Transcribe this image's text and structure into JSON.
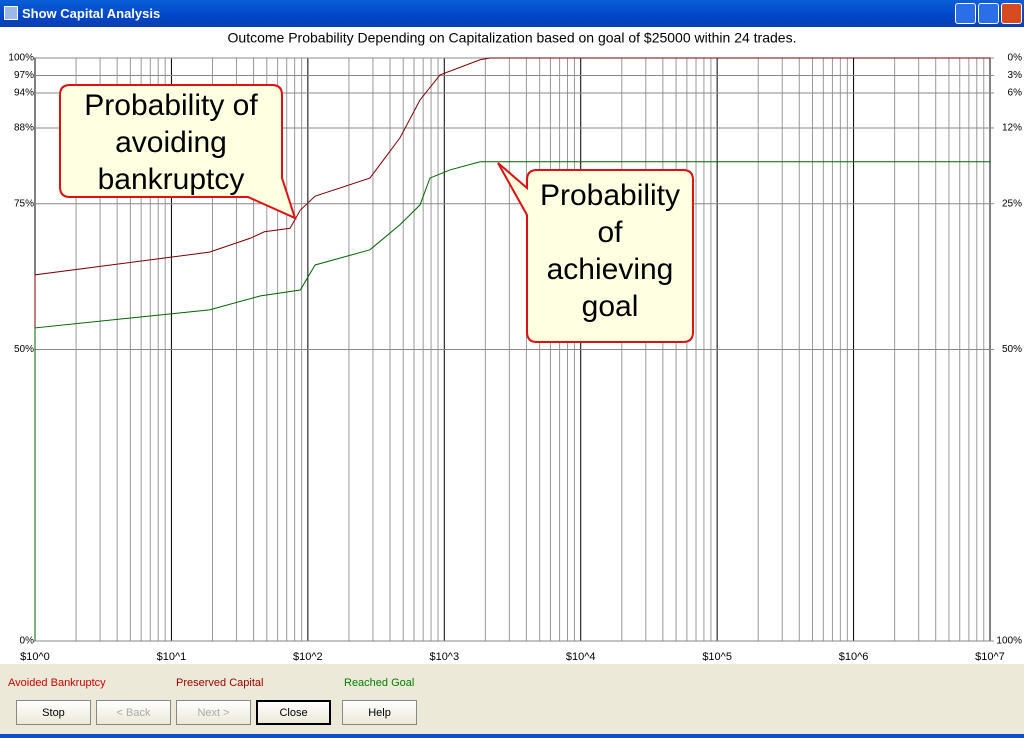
{
  "window": {
    "title": "Show Capital Analysis"
  },
  "chart_data": {
    "type": "line",
    "title": "Outcome Probability Depending on Capitalization based on goal of $25000 within 24 trades.",
    "xscale": "log",
    "xlim": [
      1,
      10000000
    ],
    "xticks": [
      {
        "value": 1,
        "label": "$10^0"
      },
      {
        "value": 10,
        "label": "$10^1"
      },
      {
        "value": 100,
        "label": "$10^2"
      },
      {
        "value": 1000,
        "label": "$10^3"
      },
      {
        "value": 10000,
        "label": "$10^4"
      },
      {
        "value": 100000,
        "label": "$10^5"
      },
      {
        "value": 1000000,
        "label": "$10^6"
      },
      {
        "value": 10000000,
        "label": "$10^7"
      }
    ],
    "ylim": [
      0,
      100
    ],
    "yticks": [
      {
        "value": 0,
        "label": "0%"
      },
      {
        "value": 50,
        "label": "50%"
      },
      {
        "value": 75,
        "label": "75%"
      },
      {
        "value": 88,
        "label": "88%"
      },
      {
        "value": 94,
        "label": "94%"
      },
      {
        "value": 97,
        "label": "97%"
      },
      {
        "value": 100,
        "label": "100%"
      }
    ],
    "y2lim": [
      100,
      0
    ],
    "y2ticks": [
      {
        "value": 0,
        "label": "0%"
      },
      {
        "value": 3,
        "label": "3%"
      },
      {
        "value": 6,
        "label": "6%"
      },
      {
        "value": 12,
        "label": "12%"
      },
      {
        "value": 25,
        "label": "25%"
      },
      {
        "value": 50,
        "label": "50%"
      },
      {
        "value": 100,
        "label": "100%"
      }
    ],
    "grid": true,
    "series": [
      {
        "color": "#7b0000",
        "x": [
          1,
          1,
          19,
          38,
          48,
          74,
          88,
          113,
          285,
          473,
          664,
          930,
          1830,
          2160,
          10000000
        ],
        "values": [
          0,
          62.8,
          66.7,
          69.1,
          70.2,
          70.8,
          73.9,
          76.3,
          79.4,
          86.3,
          92.8,
          97.1,
          99.7,
          100,
          100
        ]
      },
      {
        "color": "#006400",
        "x": [
          1,
          1,
          19,
          45,
          88,
          113,
          285,
          473,
          664,
          785,
          1100,
          1830,
          10000000
        ],
        "values": [
          0,
          53.7,
          56.8,
          59.2,
          60.2,
          64.5,
          67.1,
          71.4,
          74.8,
          79.4,
          80.8,
          82.2,
          82.2
        ]
      }
    ],
    "legend": [
      {
        "name": "Avoided Bankruptcy",
        "color": "#cc0000"
      },
      {
        "name": "Preserved Capital",
        "color": "#990000"
      },
      {
        "name": "Reached Goal",
        "color": "#008000"
      }
    ],
    "annotations": [
      {
        "lines": [
          "Probability of",
          "avoiding",
          "bankruptcy"
        ]
      },
      {
        "lines": [
          "Probability",
          "of",
          "achieving",
          "goal"
        ]
      }
    ]
  },
  "buttons": [
    {
      "label": "Stop",
      "enabled": true
    },
    {
      "label": "< Back",
      "enabled": false
    },
    {
      "label": "Next >",
      "enabled": false
    },
    {
      "label": "Close",
      "enabled": true
    },
    {
      "label": "Help",
      "enabled": true
    }
  ]
}
